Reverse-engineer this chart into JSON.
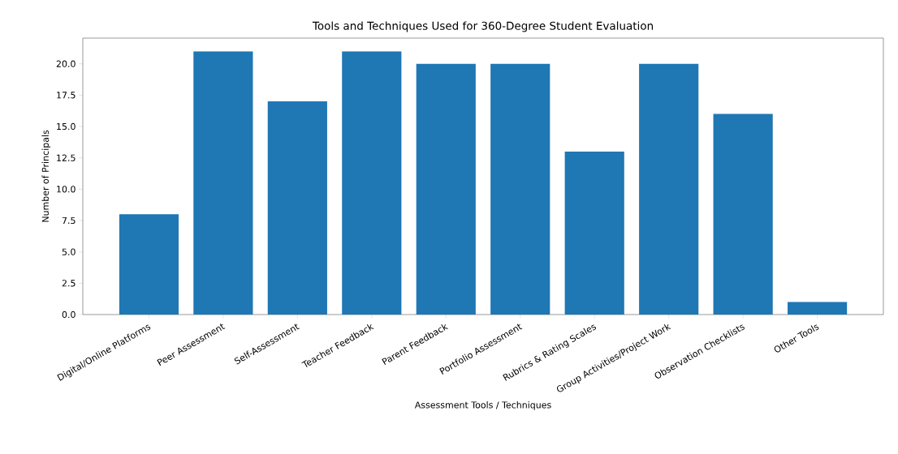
{
  "chart_data": {
    "type": "bar",
    "title": "Tools and Techniques Used for 360-Degree Student Evaluation",
    "xlabel": "Assessment Tools / Techniques",
    "ylabel": "Number of Principals",
    "categories": [
      "Digital/Online Platforms",
      "Peer Assessment",
      "Self-Assessment",
      "Teacher Feedback",
      "Parent Feedback",
      "Portfolio Assessment",
      "Rubrics & Rating Scales",
      "Group Activities/Project Work",
      "Observation Checklists",
      "Other Tools"
    ],
    "values": [
      8,
      21,
      17,
      21,
      20,
      20,
      13,
      20,
      16,
      1
    ],
    "color": "#1f77b4",
    "ylim": [
      0,
      22.05
    ],
    "yticks": [
      {
        "value": 0,
        "label": "0.0"
      },
      {
        "value": 2.5,
        "label": "2.5"
      },
      {
        "value": 5,
        "label": "5.0"
      },
      {
        "value": 7.5,
        "label": "7.5"
      },
      {
        "value": 10,
        "label": "10.0"
      },
      {
        "value": 12.5,
        "label": "12.5"
      },
      {
        "value": 15,
        "label": "15.0"
      },
      {
        "value": 17.5,
        "label": "17.5"
      },
      {
        "value": 20,
        "label": "20.0"
      }
    ],
    "grid": false
  }
}
